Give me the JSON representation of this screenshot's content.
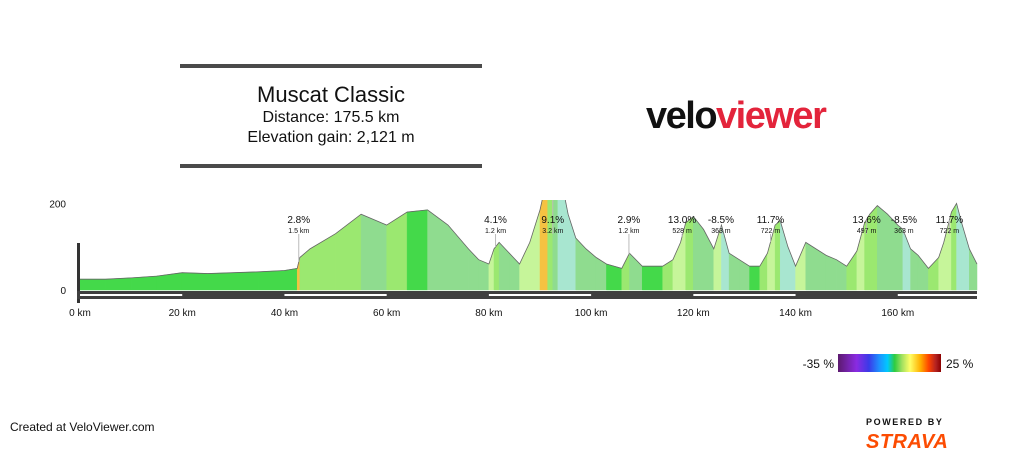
{
  "title": {
    "name": "Muscat Classic",
    "distance": "Distance: 175.5 km",
    "elevation_gain": "Elevation gain: 2,121 m"
  },
  "logo": {
    "part1": "velo",
    "part2": "viewer"
  },
  "legend": {
    "min_label": "-35 %",
    "max_label": "25 %"
  },
  "footer": {
    "credit": "Created at VeloViewer.com",
    "powered_by": "POWERED BY",
    "brand": "STRAVA"
  },
  "colors": {
    "logo_accent": "#e3243b",
    "strava": "#fc4c02"
  },
  "chart_data": {
    "type": "area",
    "xunit": "km",
    "x_ticks": [
      0,
      20,
      40,
      60,
      80,
      100,
      120,
      140,
      160
    ],
    "x_tick_labels": [
      "0 km",
      "20 km",
      "40 km",
      "60 km",
      "80 km",
      "100 km",
      "120 km",
      "140 km",
      "160 km"
    ],
    "y_ticks": [
      0,
      200
    ],
    "y_tick_labels": [
      "0",
      "200"
    ],
    "xlim": [
      0,
      175.5
    ],
    "ylim": [
      -30,
      450
    ],
    "profile": {
      "x": [
        0,
        5,
        10,
        15,
        20,
        25,
        30,
        35,
        40,
        42.5,
        43,
        45,
        50,
        55,
        60,
        64,
        68,
        72,
        76,
        78,
        80,
        81,
        82,
        84,
        86,
        88,
        90,
        91.5,
        92.5,
        93.5,
        94.5,
        95.5,
        97,
        99,
        101,
        103,
        106,
        107.5,
        110,
        114,
        116,
        117.5,
        118.5,
        120,
        122,
        124,
        125.5,
        127,
        129,
        131,
        133,
        134.5,
        136,
        137,
        138.5,
        140,
        142,
        144,
        146,
        148,
        150,
        152,
        153.5,
        154.5,
        156,
        158,
        160,
        161,
        162.5,
        164,
        166,
        168,
        169,
        170.5,
        171.5,
        172.5,
        174,
        175.5
      ],
      "y": [
        25,
        25,
        28,
        32,
        40,
        38,
        40,
        42,
        45,
        50,
        75,
        95,
        130,
        175,
        150,
        180,
        185,
        150,
        95,
        70,
        60,
        95,
        110,
        85,
        60,
        110,
        185,
        265,
        280,
        270,
        235,
        175,
        120,
        95,
        75,
        60,
        50,
        85,
        55,
        55,
        70,
        110,
        155,
        170,
        140,
        95,
        150,
        85,
        70,
        55,
        55,
        85,
        150,
        160,
        100,
        55,
        110,
        95,
        80,
        70,
        55,
        90,
        155,
        175,
        195,
        175,
        150,
        140,
        95,
        80,
        50,
        75,
        110,
        180,
        200,
        155,
        95,
        60
      ]
    },
    "climbs": [
      {
        "km": 42.8,
        "gradient": "2.8%",
        "length": "1.5 km"
      },
      {
        "km": 81.3,
        "gradient": "4.1%",
        "length": "1.2 km"
      },
      {
        "km": 92.5,
        "gradient": "9.1%",
        "length": "3.2 km"
      },
      {
        "km": 107.4,
        "gradient": "2.9%",
        "length": "1.2 km"
      },
      {
        "km": 117.8,
        "gradient": "13.0%",
        "length": "528 m"
      },
      {
        "km": 125.4,
        "gradient": "-8.5%",
        "length": "363 m"
      },
      {
        "km": 135.1,
        "gradient": "11.7%",
        "length": "722 m"
      },
      {
        "km": 153.9,
        "gradient": "13.6%",
        "length": "497 m"
      },
      {
        "km": 161.2,
        "gradient": "-8.5%",
        "length": "363 m"
      },
      {
        "km": 170.1,
        "gradient": "11.7%",
        "length": "722 m"
      }
    ],
    "gradient_scale": {
      "min": -35,
      "max": 25
    }
  }
}
